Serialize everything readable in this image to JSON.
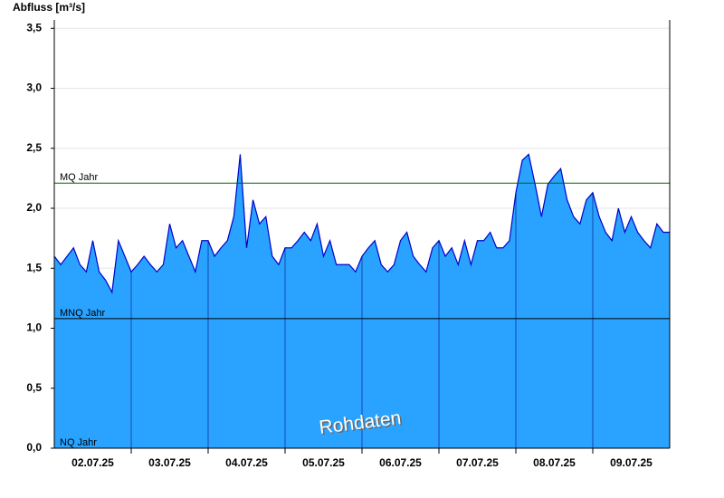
{
  "chart_data": {
    "type": "area",
    "title": "Abfluss [m³/s]",
    "annotation": "Rohdaten",
    "x": [
      0,
      2,
      4,
      6,
      8,
      10,
      12,
      14,
      16,
      18,
      20,
      22,
      24,
      26,
      28,
      30,
      32,
      34,
      36,
      38,
      40,
      42,
      44,
      46,
      48,
      50,
      52,
      54,
      56,
      58,
      60,
      62,
      64,
      66,
      68,
      70,
      72,
      74,
      76,
      78,
      80,
      82,
      84,
      86,
      88,
      90,
      92,
      94,
      96,
      98,
      100,
      102,
      104,
      106,
      108,
      110,
      112,
      114,
      116,
      118,
      120,
      122,
      124,
      126,
      128,
      130,
      132,
      134,
      136,
      138,
      140,
      142,
      144,
      146,
      148,
      150,
      152,
      154,
      156,
      158,
      160,
      162,
      164,
      166,
      168,
      170,
      172,
      174,
      176,
      178,
      180,
      182,
      184,
      186,
      188,
      190,
      192
    ],
    "values": [
      1.6,
      1.53,
      1.6,
      1.67,
      1.53,
      1.47,
      1.73,
      1.47,
      1.4,
      1.3,
      1.73,
      1.6,
      1.47,
      1.53,
      1.6,
      1.53,
      1.47,
      1.53,
      1.87,
      1.67,
      1.73,
      1.6,
      1.47,
      1.73,
      1.73,
      1.6,
      1.67,
      1.73,
      1.93,
      2.45,
      1.67,
      2.07,
      1.87,
      1.93,
      1.6,
      1.53,
      1.67,
      1.67,
      1.73,
      1.8,
      1.73,
      1.87,
      1.6,
      1.73,
      1.53,
      1.53,
      1.53,
      1.47,
      1.6,
      1.67,
      1.73,
      1.53,
      1.47,
      1.53,
      1.73,
      1.8,
      1.6,
      1.53,
      1.47,
      1.67,
      1.73,
      1.6,
      1.67,
      1.53,
      1.73,
      1.53,
      1.73,
      1.73,
      1.8,
      1.67,
      1.67,
      1.73,
      2.13,
      2.4,
      2.45,
      2.2,
      1.93,
      2.2,
      2.27,
      2.33,
      2.07,
      1.93,
      1.87,
      2.07,
      2.13,
      1.93,
      1.8,
      1.73,
      2.0,
      1.8,
      1.93,
      1.8,
      1.73,
      1.67,
      1.87,
      1.8,
      1.8
    ],
    "color": "#29a3ff",
    "line_color": "#0000cc",
    "xlim": [
      0,
      192
    ],
    "xticks": [
      {
        "value": 12,
        "label": "02.07.25"
      },
      {
        "value": 36,
        "label": "03.07.25"
      },
      {
        "value": 60,
        "label": "04.07.25"
      },
      {
        "value": 84,
        "label": "05.07.25"
      },
      {
        "value": 108,
        "label": "06.07.25"
      },
      {
        "value": 132,
        "label": "07.07.25"
      },
      {
        "value": 156,
        "label": "08.07.25"
      },
      {
        "value": 180,
        "label": "09.07.25"
      }
    ],
    "ylim": [
      0,
      3.57
    ],
    "yticks": [
      {
        "value": 0,
        "label": "0,0"
      },
      {
        "value": 0.5,
        "label": "0,5"
      },
      {
        "value": 1,
        "label": "1,0"
      },
      {
        "value": 1.5,
        "label": "1,5"
      },
      {
        "value": 2,
        "label": "2,0"
      },
      {
        "value": 2.5,
        "label": "2,5"
      },
      {
        "value": 3,
        "label": "3,0"
      },
      {
        "value": 3.5,
        "label": "3,5"
      }
    ],
    "grid": true,
    "reference_lines": [
      {
        "label": "MQ Jahr",
        "value": 2.21,
        "color": "#006600"
      },
      {
        "label": "MNQ Jahr",
        "value": 1.08,
        "color": "#000000"
      },
      {
        "label": "NQ Jahr",
        "value": 0,
        "color": "#000000"
      }
    ]
  }
}
